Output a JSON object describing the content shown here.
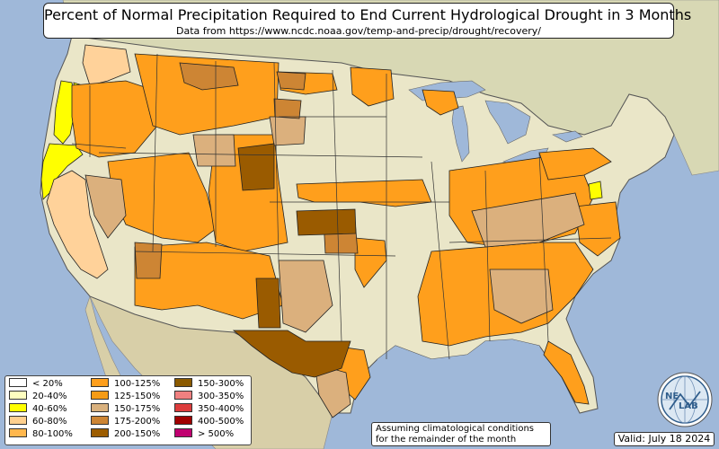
{
  "title": "Percent of Normal Precipitation Required to End Current Hydrological Drought in 3 Months",
  "subtitle": "Data from https://www.ncdc.noaa.gov/temp-and-precip/drought/recovery/",
  "legend": {
    "items": [
      {
        "label": "< 20%",
        "color": "#ffffff"
      },
      {
        "label": "20-40%",
        "color": "#ffffc0"
      },
      {
        "label": "40-60%",
        "color": "#ffff00"
      },
      {
        "label": "60-80%",
        "color": "#ffd08f"
      },
      {
        "label": "80-100%",
        "color": "#ffb74d"
      },
      {
        "label": "100-125%",
        "color": "#ff9f1c"
      },
      {
        "label": "125-150%",
        "color": "#f59b16"
      },
      {
        "label": "150-175%",
        "color": "#d9b17e"
      },
      {
        "label": "175-200%",
        "color": "#cd8534"
      },
      {
        "label": "200-150%",
        "color": "#9c5c00"
      },
      {
        "label": "150-300%",
        "color": "#8b5a00"
      },
      {
        "label": "300-350%",
        "color": "#f08080"
      },
      {
        "label": "350-400%",
        "color": "#dc3c3c"
      },
      {
        "label": "400-500%",
        "color": "#a00000"
      },
      {
        "label": "> 500%",
        "color": "#c00070"
      }
    ]
  },
  "note": {
    "line1": "Assuming climatological conditions",
    "line2": "for the remainder of the month"
  },
  "valid": "Valid: July 18 2024",
  "logo": {
    "text_top": "NE",
    "text_bottom": "LAB",
    "icon": "globe-logo-icon"
  },
  "colors": {
    "ocean": "#9fb8d9",
    "land": "#eae6c8",
    "terrain": "#c9c9a4",
    "orange": "#ff9f1c",
    "tan": "#dbb07d",
    "brown": "#9a5b00",
    "darktan": "#c98733",
    "yellow": "#ffff00",
    "peach": "#ffd29a"
  }
}
